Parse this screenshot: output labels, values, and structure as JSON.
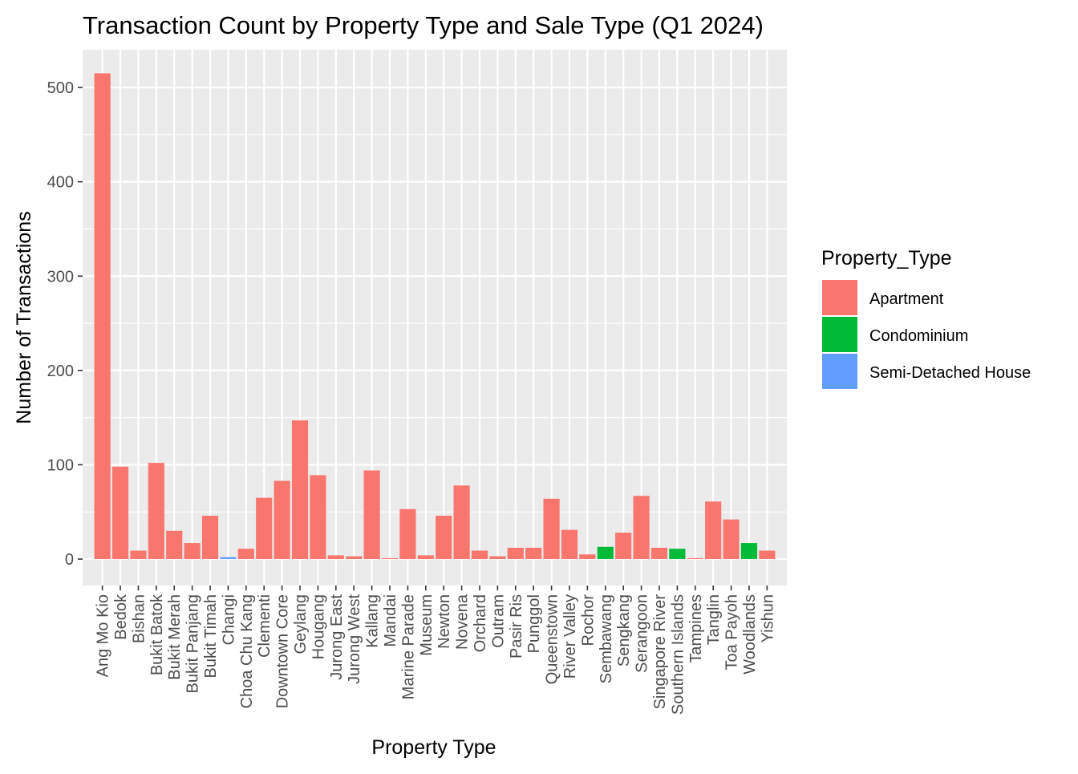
{
  "chart_data": {
    "type": "bar",
    "title": "Transaction Count by Property Type and Sale Type (Q1 2024)",
    "xlabel": "Property Type",
    "ylabel": "Number of Transactions",
    "ylim": [
      -28,
      540
    ],
    "yticks": [
      0,
      100,
      200,
      300,
      400,
      500
    ],
    "grid": true,
    "legend_position": "right",
    "legend": {
      "title": "Property_Type",
      "entries": [
        {
          "name": "Apartment",
          "color": "#F8766D"
        },
        {
          "name": "Condominium",
          "color": "#00BA38"
        },
        {
          "name": "Semi-Detached House",
          "color": "#619CFF"
        }
      ]
    },
    "categories": [
      "Ang Mo Kio",
      "Bedok",
      "Bishan",
      "Bukit Batok",
      "Bukit Merah",
      "Bukit Panjang",
      "Bukit Timah",
      "Changi",
      "Choa Chu Kang",
      "Clementi",
      "Downtown Core",
      "Geylang",
      "Hougang",
      "Jurong East",
      "Jurong West",
      "Kallang",
      "Mandai",
      "Marine Parade",
      "Museum",
      "Newton",
      "Novena",
      "Orchard",
      "Outram",
      "Pasir Ris",
      "Punggol",
      "Queenstown",
      "River Valley",
      "Rochor",
      "Sembawang",
      "Sengkang",
      "Serangoon",
      "Singapore River",
      "Southern Islands",
      "Tampines",
      "Tanglin",
      "Toa Payoh",
      "Woodlands",
      "Yishun"
    ],
    "bars": [
      {
        "category": "Ang Mo Kio",
        "value": 515,
        "type": "Apartment"
      },
      {
        "category": "Bedok",
        "value": 98,
        "type": "Apartment"
      },
      {
        "category": "Bishan",
        "value": 9,
        "type": "Apartment"
      },
      {
        "category": "Bukit Batok",
        "value": 102,
        "type": "Apartment"
      },
      {
        "category": "Bukit Merah",
        "value": 30,
        "type": "Apartment"
      },
      {
        "category": "Bukit Panjang",
        "value": 17,
        "type": "Apartment"
      },
      {
        "category": "Bukit Timah",
        "value": 46,
        "type": "Apartment"
      },
      {
        "category": "Changi",
        "value": 2,
        "type": "Semi-Detached House"
      },
      {
        "category": "Choa Chu Kang",
        "value": 11,
        "type": "Apartment"
      },
      {
        "category": "Clementi",
        "value": 65,
        "type": "Apartment"
      },
      {
        "category": "Downtown Core",
        "value": 83,
        "type": "Apartment"
      },
      {
        "category": "Geylang",
        "value": 147,
        "type": "Apartment"
      },
      {
        "category": "Hougang",
        "value": 89,
        "type": "Apartment"
      },
      {
        "category": "Jurong East",
        "value": 4,
        "type": "Apartment"
      },
      {
        "category": "Jurong West",
        "value": 3,
        "type": "Apartment"
      },
      {
        "category": "Kallang",
        "value": 94,
        "type": "Apartment"
      },
      {
        "category": "Mandai",
        "value": 1,
        "type": "Apartment"
      },
      {
        "category": "Marine Parade",
        "value": 53,
        "type": "Apartment"
      },
      {
        "category": "Museum",
        "value": 4,
        "type": "Apartment"
      },
      {
        "category": "Newton",
        "value": 46,
        "type": "Apartment"
      },
      {
        "category": "Novena",
        "value": 78,
        "type": "Apartment"
      },
      {
        "category": "Orchard",
        "value": 9,
        "type": "Apartment"
      },
      {
        "category": "Outram",
        "value": 3,
        "type": "Apartment"
      },
      {
        "category": "Pasir Ris",
        "value": 12,
        "type": "Apartment"
      },
      {
        "category": "Punggol",
        "value": 12,
        "type": "Apartment"
      },
      {
        "category": "Queenstown",
        "value": 64,
        "type": "Apartment"
      },
      {
        "category": "River Valley",
        "value": 31,
        "type": "Apartment"
      },
      {
        "category": "Rochor",
        "value": 5,
        "type": "Apartment"
      },
      {
        "category": "Sembawang",
        "value": 13,
        "type": "Condominium"
      },
      {
        "category": "Sengkang",
        "value": 28,
        "type": "Apartment"
      },
      {
        "category": "Serangoon",
        "value": 67,
        "type": "Apartment"
      },
      {
        "category": "Singapore River",
        "value": 12,
        "type": "Apartment"
      },
      {
        "category": "Southern Islands",
        "value": 11,
        "type": "Condominium"
      },
      {
        "category": "Tampines",
        "value": 1,
        "type": "Apartment"
      },
      {
        "category": "Tanglin",
        "value": 61,
        "type": "Apartment"
      },
      {
        "category": "Toa Payoh",
        "value": 42,
        "type": "Apartment"
      },
      {
        "category": "Woodlands",
        "value": 17,
        "type": "Condominium"
      },
      {
        "category": "Yishun",
        "value": 9,
        "type": "Apartment"
      }
    ]
  }
}
